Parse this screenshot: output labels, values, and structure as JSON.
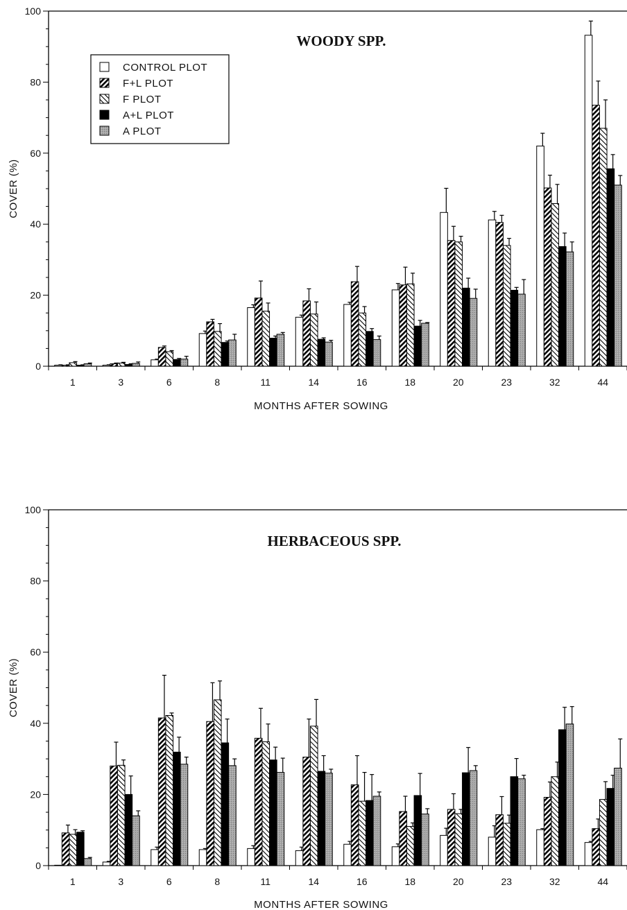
{
  "legend": [
    {
      "label": "CONTROL PLOT",
      "style": "white"
    },
    {
      "label": "F+L PLOT",
      "style": "hatch-bold"
    },
    {
      "label": "F PLOT",
      "style": "hatch-light"
    },
    {
      "label": "A+L PLOT",
      "style": "black"
    },
    {
      "label": "A PLOT",
      "style": "gray"
    }
  ],
  "chart_data": [
    {
      "type": "bar",
      "title": "WOODY SPP.",
      "xlabel": "MONTHS AFTER SOWING",
      "ylabel": "COVER (%)",
      "ylim": [
        0,
        100
      ],
      "yticks": [
        "0",
        "20",
        "40",
        "60",
        "80",
        "100"
      ],
      "categories": [
        "1",
        "3",
        "6",
        "8",
        "11",
        "14",
        "16",
        "18",
        "20",
        "23",
        "32",
        "44"
      ],
      "series": [
        {
          "name": "CONTROL PLOT",
          "values": [
            0.3,
            0.3,
            1.8,
            9.2,
            16.5,
            13.8,
            17.4,
            21.5,
            43.3,
            41.2,
            62.0,
            93.2
          ],
          "errors": [
            0.1,
            0.1,
            0.2,
            0.7,
            0.8,
            0.6,
            0.6,
            1.8,
            6.8,
            2.4,
            3.6,
            4.0
          ]
        },
        {
          "name": "F+L PLOT",
          "values": [
            0.3,
            0.7,
            5.3,
            12.5,
            19.2,
            18.4,
            23.8,
            22.9,
            35.4,
            40.5,
            50.2,
            73.5
          ],
          "errors": [
            0.1,
            0.2,
            0.4,
            0.7,
            4.8,
            3.4,
            4.3,
            5.0,
            4.0,
            2.0,
            3.6,
            6.8
          ]
        },
        {
          "name": "F PLOT",
          "values": [
            1.0,
            0.9,
            4.1,
            9.8,
            15.5,
            14.7,
            15.0,
            23.2,
            35.0,
            34.0,
            45.8,
            67.0
          ],
          "errors": [
            0.3,
            0.2,
            0.3,
            2.2,
            2.3,
            3.4,
            1.8,
            3.0,
            1.6,
            2.0,
            5.4,
            8.0
          ]
        },
        {
          "name": "A+L PLOT",
          "values": [
            0.3,
            0.5,
            1.9,
            6.7,
            7.9,
            7.6,
            9.8,
            11.3,
            22.0,
            21.4,
            33.7,
            55.6
          ],
          "errors": [
            0.1,
            0.2,
            0.3,
            0.4,
            0.6,
            0.4,
            0.8,
            1.6,
            2.8,
            0.8,
            3.8,
            4.0
          ]
        },
        {
          "name": "A PLOT",
          "values": [
            0.7,
            0.8,
            2.0,
            7.4,
            9.0,
            6.8,
            7.5,
            12.1,
            19.1,
            20.3,
            32.2,
            51.0
          ],
          "errors": [
            0.2,
            0.4,
            0.8,
            1.6,
            0.5,
            0.5,
            1.0,
            0.2,
            2.6,
            4.1,
            2.8,
            2.7
          ]
        }
      ]
    },
    {
      "type": "bar",
      "title": "HERBACEOUS SPP.",
      "xlabel": "MONTHS AFTER SOWING",
      "ylabel": "COVER (%)",
      "ylim": [
        0,
        100
      ],
      "yticks": [
        "0",
        "20",
        "40",
        "60",
        "80",
        "100"
      ],
      "categories": [
        "1",
        "3",
        "6",
        "8",
        "11",
        "14",
        "16",
        "18",
        "20",
        "23",
        "32",
        "44"
      ],
      "series": [
        {
          "name": "CONTROL PLOT",
          "values": [
            0.0,
            1.0,
            4.5,
            4.5,
            4.8,
            4.2,
            6.0,
            5.3,
            8.5,
            8.0,
            10.1,
            6.5
          ],
          "errors": [
            0.0,
            0.2,
            0.7,
            0.3,
            0.8,
            1.0,
            0.8,
            0.8,
            2.0,
            3.2,
            0.3,
            0.3
          ]
        },
        {
          "name": "F+L PLOT",
          "values": [
            9.2,
            28.0,
            41.5,
            40.5,
            35.8,
            30.5,
            22.7,
            15.2,
            15.8,
            14.3,
            19.2,
            10.4
          ],
          "errors": [
            2.2,
            6.7,
            12.0,
            10.9,
            8.4,
            10.7,
            8.2,
            4.3,
            4.4,
            5.1,
            4.3,
            2.7
          ]
        },
        {
          "name": "F PLOT",
          "values": [
            8.8,
            28.2,
            42.2,
            46.6,
            34.8,
            39.2,
            18.1,
            11.0,
            14.6,
            11.9,
            25.0,
            18.6
          ],
          "errors": [
            1.3,
            1.5,
            0.7,
            5.3,
            5.0,
            7.5,
            8.1,
            1.0,
            1.2,
            2.3,
            4.1,
            5.0
          ]
        },
        {
          "name": "A+L PLOT",
          "values": [
            9.4,
            20.0,
            31.9,
            34.5,
            29.7,
            26.5,
            18.3,
            19.7,
            26.1,
            25.0,
            38.2,
            21.7
          ],
          "errors": [
            0.4,
            5.2,
            4.2,
            6.7,
            3.6,
            4.4,
            7.3,
            6.2,
            7.1,
            5.1,
            6.3,
            3.7
          ]
        },
        {
          "name": "A PLOT",
          "values": [
            2.0,
            14.0,
            28.5,
            28.1,
            26.2,
            26.0,
            19.5,
            14.5,
            26.7,
            24.4,
            39.8,
            27.4
          ],
          "errors": [
            0.3,
            1.4,
            2.0,
            1.9,
            4.0,
            1.1,
            1.2,
            1.5,
            1.4,
            1.0,
            4.9,
            8.2
          ]
        }
      ]
    }
  ]
}
